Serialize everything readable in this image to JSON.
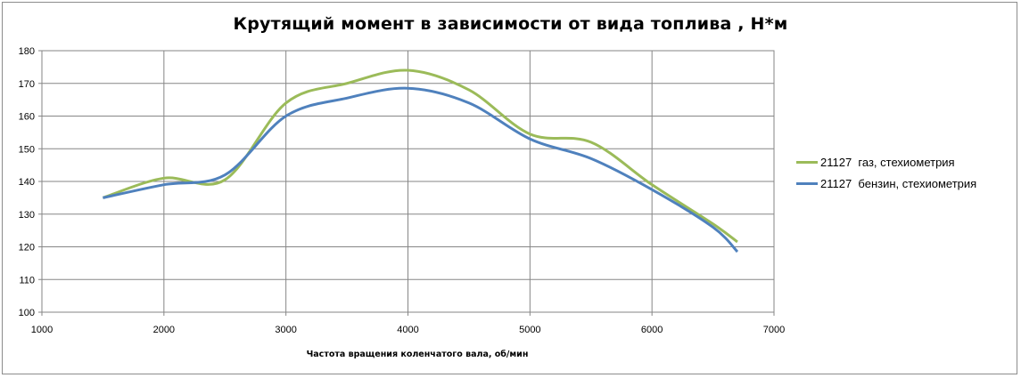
{
  "chart_data": {
    "type": "line",
    "title": "Крутящий момент в зависимости от вида топлива , Н*м",
    "xlabel": "Частота вращения коленчатого вала, об/мин",
    "ylabel": "",
    "xlim": [
      1000,
      7000
    ],
    "ylim": [
      100,
      180
    ],
    "x_ticks": [
      1000,
      2000,
      3000,
      4000,
      5000,
      6000,
      7000
    ],
    "y_ticks": [
      100,
      110,
      120,
      130,
      140,
      150,
      160,
      170,
      180
    ],
    "grid": true,
    "legend_position": "right",
    "series": [
      {
        "name": "21127  газ, стехиометрия",
        "color": "#9bbb59",
        "x": [
          1500,
          2000,
          2500,
          3000,
          3500,
          4000,
          4500,
          5000,
          5500,
          6000,
          6500,
          6700
        ],
        "y": [
          135,
          141,
          140.5,
          164,
          170,
          174,
          168,
          154.5,
          152,
          139,
          127,
          121.5
        ]
      },
      {
        "name": "21127  бензин, стехиометрия",
        "color": "#4f81bd",
        "x": [
          1500,
          2000,
          2500,
          3000,
          3500,
          4000,
          4500,
          5000,
          5500,
          6000,
          6500,
          6700
        ],
        "y": [
          135,
          139,
          142,
          160,
          165.5,
          168.5,
          164,
          153,
          147,
          137.5,
          126,
          118.5
        ]
      }
    ]
  }
}
